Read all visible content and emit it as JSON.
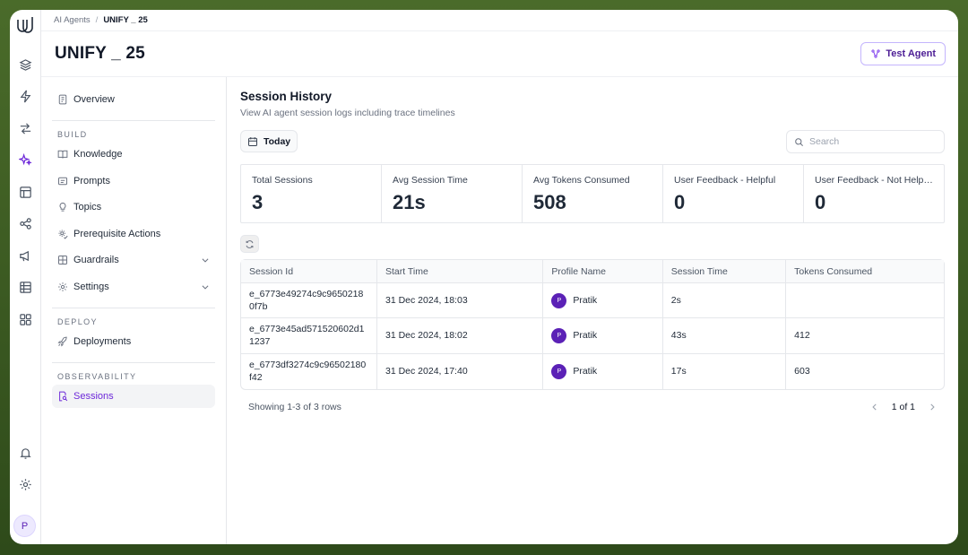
{
  "breadcrumb": {
    "parent": "AI Agents",
    "separator": "/",
    "current": "UNIFY _ 25"
  },
  "page_title": "UNIFY _ 25",
  "test_agent_label": "Test Agent",
  "rail": {
    "icons": [
      "layers-icon",
      "lightning-icon",
      "arrow-right-icon",
      "sparkles-icon",
      "layout-icon",
      "share-icon",
      "megaphone-icon",
      "table-icon",
      "grid-icon",
      "bell-icon",
      "gear-icon"
    ],
    "avatar_initial": "P"
  },
  "nav": {
    "overview": "Overview",
    "build_title": "BUILD",
    "knowledge": "Knowledge",
    "prompts": "Prompts",
    "topics": "Topics",
    "prerequisite_actions": "Prerequisite Actions",
    "guardrails": "Guardrails",
    "settings": "Settings",
    "deploy_title": "DEPLOY",
    "deployments": "Deployments",
    "observability_title": "OBSERVABILITY",
    "sessions": "Sessions"
  },
  "main": {
    "title": "Session History",
    "subtitle": "View AI agent session logs including trace timelines",
    "date_filter": "Today",
    "search_placeholder": "Search"
  },
  "stats": [
    {
      "label": "Total Sessions",
      "value": "3"
    },
    {
      "label": "Avg Session Time",
      "value": "21s"
    },
    {
      "label": "Avg Tokens Consumed",
      "value": "508"
    },
    {
      "label": "User Feedback - Helpful",
      "value": "0"
    },
    {
      "label": "User Feedback - Not Helpful",
      "value": "0"
    }
  ],
  "table": {
    "headers": [
      "Session Id",
      "Start Time",
      "Profile Name",
      "Session Time",
      "Tokens Consumed"
    ],
    "rows": [
      {
        "session_id": "e_6773e49274c9c96502180f7b",
        "start_time": "31 Dec 2024, 18:03",
        "avatar": "P",
        "profile": "Pratik",
        "session_time": "2s",
        "tokens": ""
      },
      {
        "session_id": "e_6773e45ad571520602d11237",
        "start_time": "31 Dec 2024, 18:02",
        "avatar": "P",
        "profile": "Pratik",
        "session_time": "43s",
        "tokens": "412"
      },
      {
        "session_id": "e_6773df3274c9c96502180f42",
        "start_time": "31 Dec 2024, 17:40",
        "avatar": "P",
        "profile": "Pratik",
        "session_time": "17s",
        "tokens": "603"
      }
    ]
  },
  "footer": {
    "showing": "Showing 1-3 of 3 rows",
    "page": "1 of 1"
  },
  "colors": {
    "accent": "#6d28d9",
    "frame_bg": "#3f5e24"
  }
}
